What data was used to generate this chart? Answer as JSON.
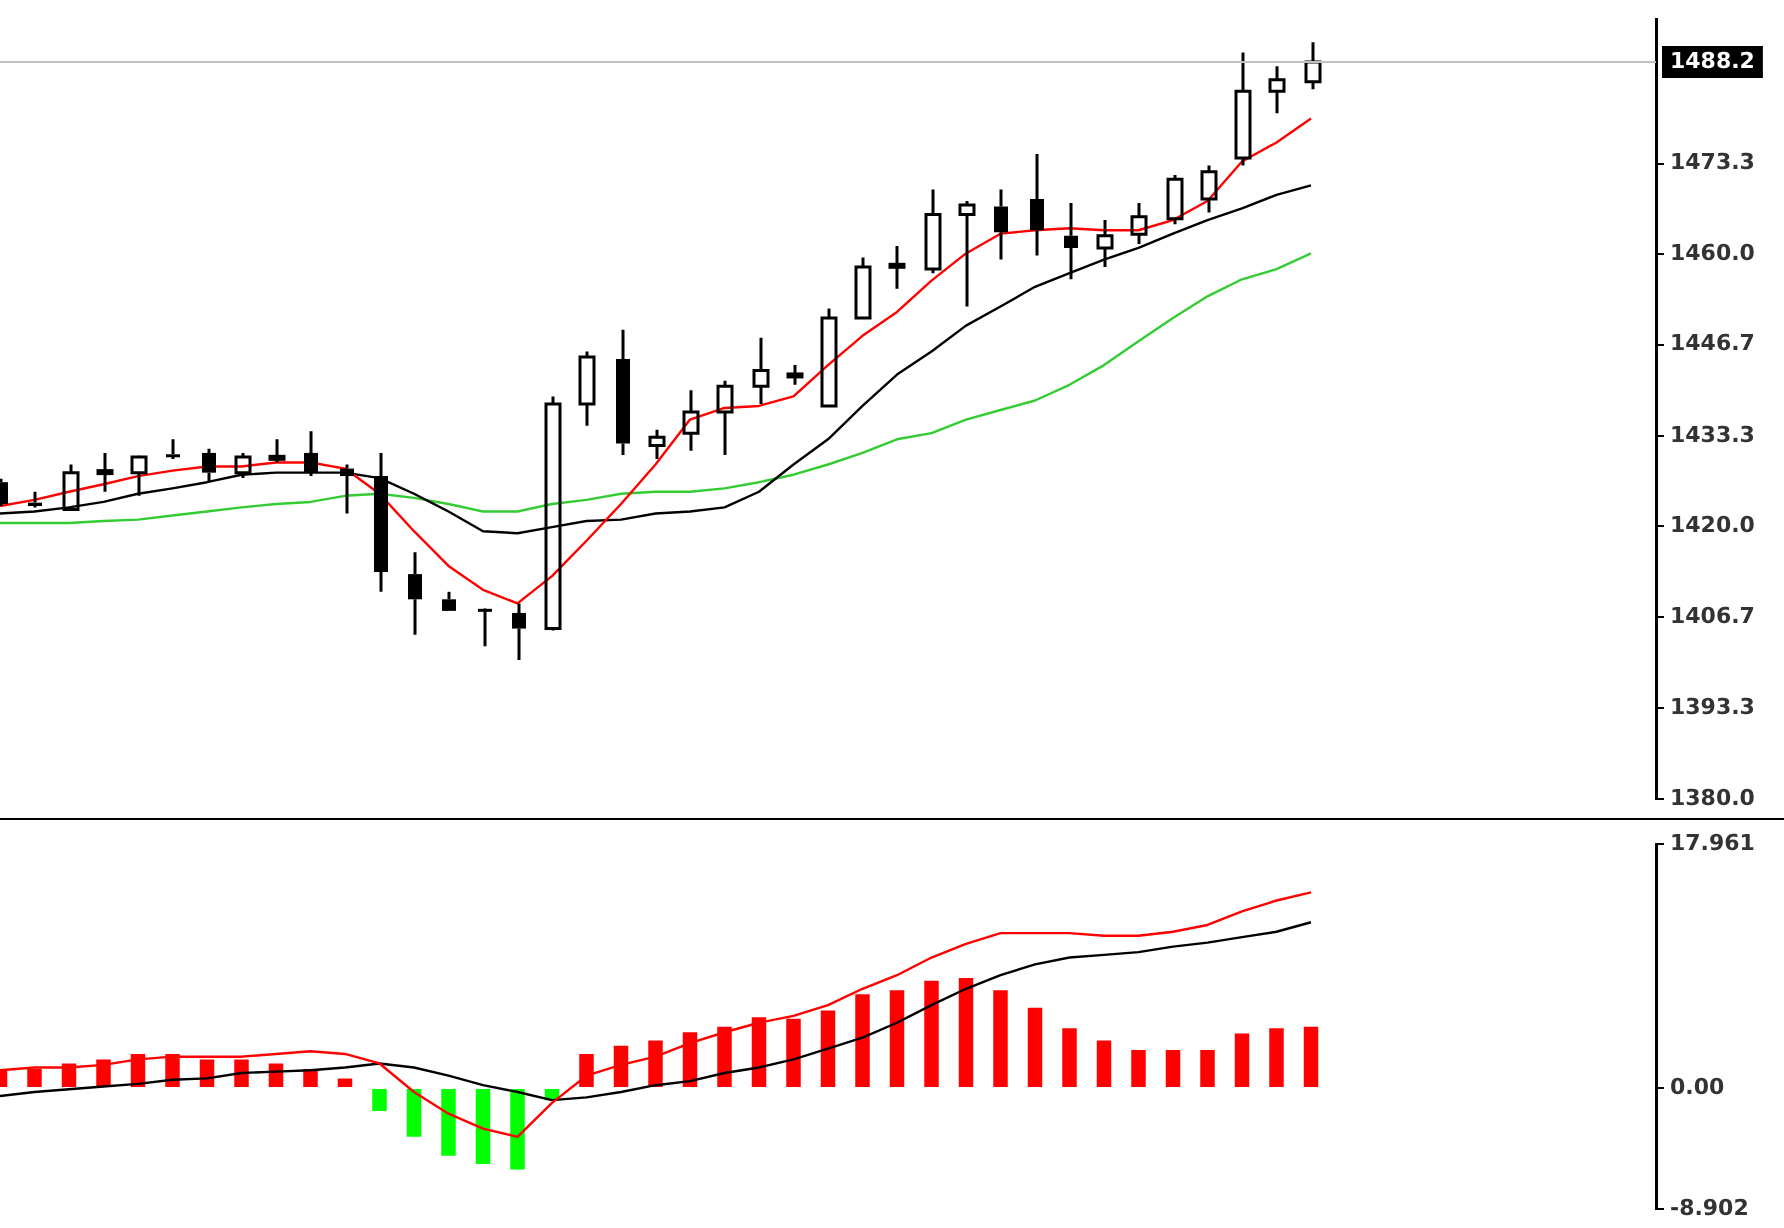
{
  "chart_data": [
    {
      "type": "candlestick",
      "categories": [
        null,
        null,
        null,
        null,
        null,
        null,
        null,
        null,
        null,
        null,
        null,
        null,
        null,
        null,
        null,
        null,
        null,
        null,
        null,
        null,
        null,
        null,
        null,
        null,
        null,
        null,
        null,
        null,
        null,
        null,
        null,
        null,
        null,
        null,
        null,
        null,
        null,
        null,
        null,
        null,
        null,
        null,
        null,
        null,
        null,
        null,
        null,
        null,
        null
      ],
      "color": "#000000",
      "ohlc": [
        [
          1426.5,
          1427.0,
          1423.0,
          1423.3
        ],
        [
          1423.5,
          1425.1,
          1422.8,
          1423.0
        ],
        [
          1422.5,
          1429.1,
          1422.3,
          1427.9
        ],
        [
          1427.8,
          1430.8,
          1425.1,
          1428.2
        ],
        [
          1427.9,
          1430.4,
          1424.5,
          1430.2
        ],
        [
          1430.6,
          1432.8,
          1429.9,
          1430.2
        ],
        [
          1430.8,
          1431.4,
          1426.6,
          1427.9
        ],
        [
          1427.9,
          1430.8,
          1427.1,
          1430.2
        ],
        [
          1430.1,
          1432.8,
          1429.4,
          1430.3
        ],
        [
          1430.8,
          1434.0,
          1427.4,
          1427.9
        ],
        [
          1428.5,
          1429.1,
          1421.9,
          1427.4
        ],
        [
          1427.4,
          1430.8,
          1410.4,
          1413.3
        ],
        [
          1413.0,
          1416.2,
          1404.1,
          1409.3
        ],
        [
          1409.3,
          1410.4,
          1407.6,
          1407.6
        ],
        [
          1407.9,
          1408.0,
          1402.4,
          1407.6
        ],
        [
          1407.3,
          1408.7,
          1400.4,
          1405.0
        ],
        [
          1405.0,
          1439.1,
          1404.7,
          1438.0
        ],
        [
          1438.0,
          1445.7,
          1434.8,
          1444.9
        ],
        [
          1444.6,
          1448.9,
          1430.5,
          1432.2
        ],
        [
          1431.9,
          1434.2,
          1429.9,
          1433.1
        ],
        [
          1433.7,
          1440.0,
          1431.1,
          1436.8
        ],
        [
          1436.8,
          1441.4,
          1430.5,
          1440.6
        ],
        [
          1440.6,
          1447.7,
          1438.0,
          1442.9
        ],
        [
          1442.2,
          1443.7,
          1440.8,
          1442.4
        ],
        [
          1437.7,
          1452.0,
          1437.7,
          1450.6
        ],
        [
          1450.6,
          1459.5,
          1450.6,
          1458.1
        ],
        [
          1458.2,
          1461.2,
          1454.9,
          1458.5
        ],
        [
          1457.8,
          1469.5,
          1457.2,
          1465.8
        ],
        [
          1465.8,
          1467.8,
          1452.3,
          1467.2
        ],
        [
          1467.0,
          1469.5,
          1459.2,
          1463.2
        ],
        [
          1468.1,
          1474.7,
          1459.8,
          1463.5
        ],
        [
          1462.7,
          1467.5,
          1456.3,
          1460.9
        ],
        [
          1460.9,
          1465.0,
          1458.1,
          1462.7
        ],
        [
          1462.9,
          1467.5,
          1461.5,
          1465.5
        ],
        [
          1465.2,
          1471.6,
          1464.4,
          1471.0
        ],
        [
          1468.1,
          1473.0,
          1466.1,
          1472.1
        ],
        [
          1474.1,
          1489.6,
          1473.0,
          1483.9
        ],
        [
          1483.9,
          1487.6,
          1480.7,
          1485.6
        ],
        [
          1485.3,
          1491.1,
          1484.2,
          1488.2
        ],
        null,
        null,
        null,
        null,
        null,
        null,
        null,
        null,
        null,
        null
      ],
      "series": [
        {
          "type": "line",
          "color": "#ff0000",
          "values": [
            1423.0,
            1423.9,
            1425.1,
            1426.2,
            1427.4,
            1428.2,
            1428.8,
            1428.8,
            1429.4,
            1429.4,
            1428.5,
            1424.8,
            1419.3,
            1414.2,
            1410.7,
            1408.7,
            1412.7,
            1417.9,
            1423.3,
            1429.1,
            1435.7,
            1437.4,
            1437.7,
            1439.1,
            1443.7,
            1448.0,
            1451.5,
            1456.1,
            1460.1,
            1463.0,
            1463.5,
            1463.8,
            1463.5,
            1463.5,
            1465.0,
            1467.8,
            1473.6,
            1476.4,
            1479.9,
            null,
            null,
            null,
            null,
            null,
            null,
            null,
            null,
            null,
            null
          ]
        },
        {
          "type": "line",
          "color": "#000000",
          "values": [
            1421.9,
            1422.2,
            1422.8,
            1423.6,
            1424.8,
            1425.6,
            1426.5,
            1427.6,
            1427.9,
            1427.9,
            1427.9,
            1427.1,
            1424.8,
            1422.2,
            1419.3,
            1419.0,
            1419.9,
            1420.8,
            1421.0,
            1421.9,
            1422.2,
            1422.8,
            1425.1,
            1429.1,
            1432.8,
            1437.7,
            1442.3,
            1445.7,
            1449.5,
            1452.3,
            1455.2,
            1457.2,
            1459.2,
            1460.9,
            1463.0,
            1465.0,
            1466.7,
            1468.7,
            1470.1,
            null,
            null,
            null,
            null,
            null,
            null,
            null,
            null,
            null,
            null
          ]
        },
        {
          "type": "line",
          "color": "#33cc33",
          "values": [
            1420.5,
            1420.5,
            1420.5,
            1420.8,
            1421.0,
            1421.6,
            1422.2,
            1422.8,
            1423.3,
            1423.6,
            1424.5,
            1424.8,
            1424.2,
            1423.3,
            1422.2,
            1422.2,
            1423.3,
            1423.9,
            1424.8,
            1425.1,
            1425.1,
            1425.6,
            1426.5,
            1427.6,
            1429.1,
            1430.8,
            1432.8,
            1433.7,
            1435.7,
            1437.1,
            1438.5,
            1440.8,
            1443.7,
            1447.2,
            1450.6,
            1453.8,
            1456.3,
            1457.8,
            1460.1,
            null,
            null,
            null,
            null,
            null,
            null,
            null,
            null,
            null,
            null
          ]
        }
      ],
      "ylim": [
        1380,
        1494.5
      ],
      "yticks": [
        {
          "value": 1380.0,
          "label": "1380.0"
        },
        {
          "value": 1393.3,
          "label": "1393.3"
        },
        {
          "value": 1406.7,
          "label": "1406.7"
        },
        {
          "value": 1420.0,
          "label": "1420.0"
        },
        {
          "value": 1433.3,
          "label": "1433.3"
        },
        {
          "value": 1446.7,
          "label": "1446.7"
        },
        {
          "value": 1460.0,
          "label": "1460.0"
        },
        {
          "value": 1473.3,
          "label": "1473.3"
        }
      ],
      "ref_lines": [
        {
          "axis": "y",
          "value": 1488.2,
          "label": "1488.2",
          "color": "#c0c0c0"
        }
      ],
      "tick_labels": "y"
    },
    {
      "type": "bar",
      "categories": [
        null,
        null,
        null,
        null,
        null,
        null,
        null,
        null,
        null,
        null,
        null,
        null,
        null,
        null,
        null,
        null,
        null,
        null,
        null,
        null,
        null,
        null,
        null,
        null,
        null,
        null,
        null,
        null,
        null,
        null,
        null,
        null,
        null,
        null,
        null,
        null,
        null,
        null,
        null,
        null,
        null,
        null,
        null,
        null,
        null,
        null,
        null,
        null,
        null
      ],
      "series": [
        {
          "type": "bar",
          "colors": [
            "#ff0000",
            "#ff0000",
            "#ff0000",
            "#ff0000",
            "#ff0000",
            "#ff0000",
            "#ff0000",
            "#ff0000",
            "#ff0000",
            "#ff0000",
            "#ff0000",
            "#00ff00",
            "#00ff00",
            "#00ff00",
            "#00ff00",
            "#00ff00",
            "#00ff00",
            "#ff0000",
            "#ff0000",
            "#ff0000",
            "#ff0000",
            "#ff0000",
            "#ff0000",
            "#ff0000",
            "#ff0000",
            "#ff0000",
            "#ff0000",
            "#ff0000",
            "#ff0000",
            "#ff0000",
            "#ff0000",
            "#ff0000",
            "#ff0000",
            "#ff0000",
            "#ff0000",
            "#ff0000",
            "#ff0000",
            "#ff0000",
            "#ff0000",
            null,
            null,
            null,
            null,
            null,
            null,
            null,
            null,
            null,
            null
          ],
          "values": [
            1.4,
            1.4,
            1.8,
            2.1,
            2.5,
            2.5,
            2.1,
            2.1,
            1.8,
            1.4,
            0.7,
            -1.7,
            -3.6,
            -5.0,
            -5.6,
            -6.0,
            -0.9,
            2.5,
            3.1,
            3.5,
            4.1,
            4.5,
            5.2,
            5.1,
            5.7,
            6.9,
            7.2,
            7.9,
            8.1,
            7.2,
            5.9,
            4.4,
            3.5,
            2.8,
            2.8,
            2.8,
            4.0,
            4.4,
            4.5,
            null,
            null,
            null,
            null,
            null,
            null,
            null,
            null,
            null,
            null
          ]
        },
        {
          "type": "line",
          "color": "#ff0000",
          "values": [
            1.3,
            1.5,
            1.5,
            1.7,
            2.1,
            2.3,
            2.3,
            2.3,
            2.5,
            2.7,
            2.5,
            1.8,
            -0.3,
            -1.9,
            -3.0,
            -3.6,
            -1.1,
            0.9,
            1.7,
            2.3,
            3.3,
            4.1,
            4.8,
            5.3,
            6.1,
            7.3,
            8.3,
            9.6,
            10.6,
            11.4,
            11.4,
            11.4,
            11.2,
            11.2,
            11.5,
            12.0,
            13.0,
            13.8,
            14.4,
            null,
            null,
            null,
            null,
            null,
            null,
            null,
            null,
            null,
            null
          ]
        },
        {
          "type": "line",
          "color": "#000000",
          "values": [
            -0.6,
            -0.3,
            -0.1,
            0.1,
            0.3,
            0.6,
            0.7,
            1.1,
            1.2,
            1.3,
            1.5,
            1.8,
            1.5,
            0.9,
            0.2,
            -0.3,
            -0.9,
            -0.7,
            -0.3,
            0.2,
            0.5,
            1.1,
            1.5,
            2.1,
            2.9,
            3.7,
            4.8,
            6.1,
            7.3,
            8.3,
            9.1,
            9.6,
            9.8,
            10.0,
            10.4,
            10.7,
            11.1,
            11.5,
            12.2,
            null,
            null,
            null,
            null,
            null,
            null,
            null,
            null,
            null,
            null
          ]
        }
      ],
      "ylim": [
        -8.902,
        17.961
      ],
      "yticks": [
        {
          "value": -8.902,
          "label": "-8.902"
        },
        {
          "value": 0,
          "label": "0.00"
        },
        {
          "value": 17.961,
          "label": "17.961"
        }
      ],
      "tick_labels": "y"
    }
  ]
}
